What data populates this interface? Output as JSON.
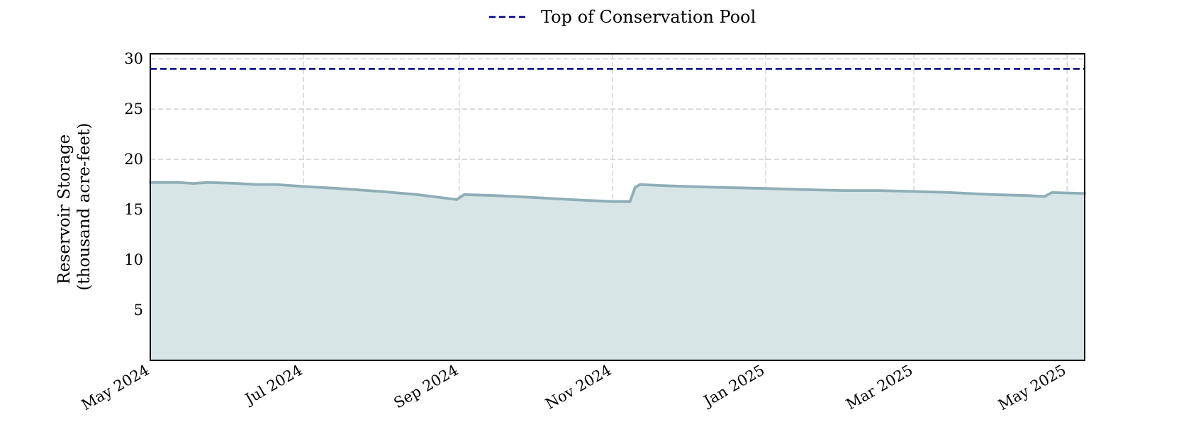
{
  "chart_data": {
    "type": "area",
    "title": "",
    "xlabel": "",
    "ylabel_lines": [
      "Reservoir Storage",
      "(thousand acre-feet)"
    ],
    "ylim": [
      0,
      30.5
    ],
    "xlim": [
      "2024-05-01",
      "2025-05-08"
    ],
    "y_ticks": [
      5,
      10,
      15,
      20,
      25,
      30
    ],
    "x_ticks": [
      {
        "date": "2024-05-01",
        "label": "May 2024"
      },
      {
        "date": "2024-07-01",
        "label": "Jul 2024"
      },
      {
        "date": "2024-09-01",
        "label": "Sep 2024"
      },
      {
        "date": "2024-11-01",
        "label": "Nov 2024"
      },
      {
        "date": "2025-01-01",
        "label": "Jan 2025"
      },
      {
        "date": "2025-03-01",
        "label": "Mar 2025"
      },
      {
        "date": "2025-05-01",
        "label": "May 2025"
      }
    ],
    "grid": true,
    "legend_position": "top-center",
    "series": [
      {
        "role": "storage",
        "color": "#8FAEB6",
        "fill": "#D7E5E7",
        "points": [
          [
            "2024-05-01",
            17.7
          ],
          [
            "2024-05-12",
            17.7
          ],
          [
            "2024-05-18",
            17.6
          ],
          [
            "2024-05-24",
            17.7
          ],
          [
            "2024-06-05",
            17.6
          ],
          [
            "2024-06-12",
            17.5
          ],
          [
            "2024-06-20",
            17.5
          ],
          [
            "2024-07-01",
            17.3
          ],
          [
            "2024-07-15",
            17.1
          ],
          [
            "2024-08-01",
            16.8
          ],
          [
            "2024-08-15",
            16.5
          ],
          [
            "2024-08-31",
            16.0
          ],
          [
            "2024-09-03",
            16.5
          ],
          [
            "2024-09-15",
            16.4
          ],
          [
            "2024-10-01",
            16.2
          ],
          [
            "2024-10-15",
            16.0
          ],
          [
            "2024-11-01",
            15.8
          ],
          [
            "2024-11-08",
            15.8
          ],
          [
            "2024-11-10",
            17.2
          ],
          [
            "2024-11-12",
            17.5
          ],
          [
            "2024-11-20",
            17.4
          ],
          [
            "2024-12-01",
            17.3
          ],
          [
            "2024-12-15",
            17.2
          ],
          [
            "2025-01-01",
            17.1
          ],
          [
            "2025-01-15",
            17.0
          ],
          [
            "2025-02-01",
            16.9
          ],
          [
            "2025-02-15",
            16.9
          ],
          [
            "2025-03-01",
            16.8
          ],
          [
            "2025-03-15",
            16.7
          ],
          [
            "2025-04-01",
            16.5
          ],
          [
            "2025-04-15",
            16.4
          ],
          [
            "2025-04-22",
            16.3
          ],
          [
            "2025-04-25",
            16.7
          ],
          [
            "2025-05-08",
            16.6
          ]
        ]
      },
      {
        "name": "Top of Conservation Pool",
        "color": "#00008B",
        "style": "dashed",
        "points": [
          [
            "2024-05-01",
            29.0
          ],
          [
            "2025-05-08",
            29.0
          ]
        ]
      }
    ]
  }
}
